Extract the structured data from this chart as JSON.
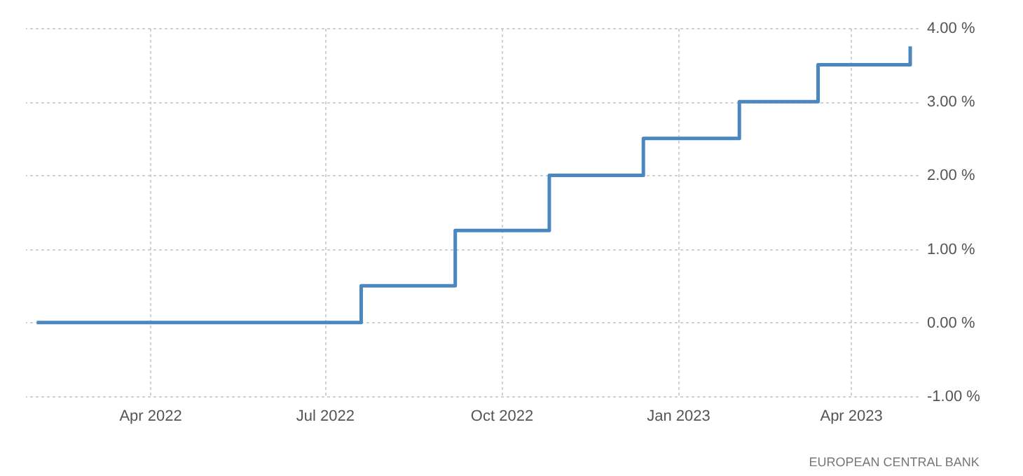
{
  "chart_data": {
    "type": "step",
    "x": [
      "2022-02-01",
      "2022-07-20",
      "2022-09-07",
      "2022-10-26",
      "2022-12-14",
      "2023-02-02",
      "2023-03-15",
      "2023-05-02"
    ],
    "values": [
      0,
      0.5,
      1.25,
      2,
      2.5,
      3,
      3.5,
      3.75
    ],
    "color": "#4a86c0",
    "xlim": [
      "2022-01-26",
      "2023-05-06"
    ],
    "xticks": [
      {
        "value": "2022-04-01",
        "label": "Apr 2022"
      },
      {
        "value": "2022-07-01",
        "label": "Jul 2022"
      },
      {
        "value": "2022-10-01",
        "label": "Oct 2022"
      },
      {
        "value": "2023-01-01",
        "label": "Jan 2023"
      },
      {
        "value": "2023-04-01",
        "label": "Apr 2023"
      }
    ],
    "ylim": [
      -1,
      4
    ],
    "yticks": [
      {
        "value": -1,
        "label": "-1.00 %"
      },
      {
        "value": 0,
        "label": "0.00 %"
      },
      {
        "value": 1,
        "label": "1.00 %"
      },
      {
        "value": 2,
        "label": "2.00 %"
      },
      {
        "value": 3,
        "label": "3.00 %"
      },
      {
        "value": 4,
        "label": "4.00 %"
      }
    ],
    "grid": true,
    "annotations": [
      "EUROPEAN CENTRAL BANK"
    ]
  }
}
